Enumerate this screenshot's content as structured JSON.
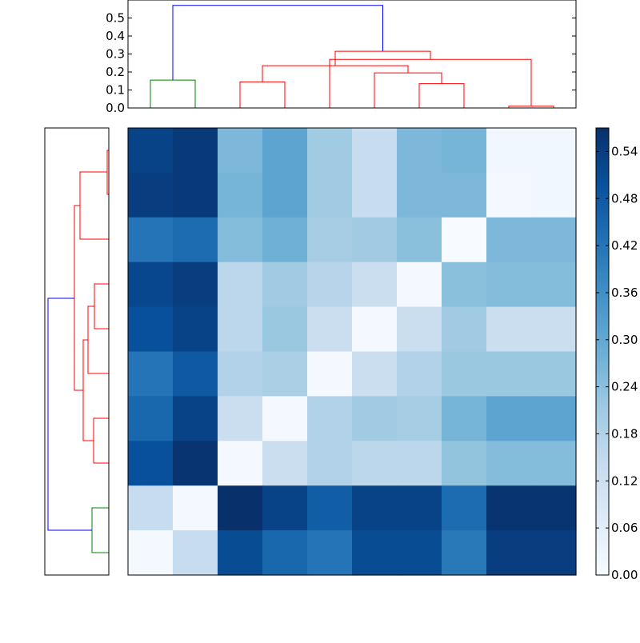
{
  "chart_data": [
    {
      "type": "dendrogram",
      "orientation": "top",
      "ylim": [
        0,
        0.6
      ],
      "yticks": [
        "0.0",
        "0.1",
        "0.2",
        "0.3",
        "0.4",
        "0.5"
      ],
      "colors": {
        "root": "#0000ff",
        "cluster_a": "#008000",
        "cluster_b": "#ff0000"
      },
      "leaf_order": [
        1,
        0,
        8,
        7,
        6,
        5,
        4,
        3,
        2,
        9
      ],
      "merges": [
        {
          "left": 8,
          "right": 9,
          "left_h": 0,
          "right_h": 0,
          "height": 0.01,
          "color": "#ff0000"
        },
        {
          "left": 6,
          "right": 7,
          "left_h": 0,
          "right_h": 0,
          "height": 0.135,
          "color": "#ff0000"
        },
        {
          "left": 0,
          "right": 1,
          "left_h": 0,
          "right_h": 0,
          "height": 0.155,
          "color": "#008000"
        },
        {
          "left": 2,
          "right": 3,
          "left_h": 0,
          "right_h": 0,
          "height": 0.145,
          "color": "#ff0000"
        },
        {
          "left": 5,
          "right": "6-7",
          "left_h": 0,
          "right_h": 0.135,
          "height": 0.195,
          "color": "#ff0000"
        },
        {
          "left": "2-3",
          "right": "5-7",
          "left_h": 0.145,
          "right_h": 0.195,
          "height": 0.235,
          "color": "#ff0000"
        },
        {
          "left": 4,
          "right": "8-9",
          "left_h": 0,
          "right_h": 0.01,
          "height": 0.27,
          "color": "#ff0000"
        },
        {
          "left": "2-7",
          "right": "4-9",
          "left_h": 0.235,
          "right_h": 0.27,
          "height": 0.315,
          "color": "#ff0000"
        },
        {
          "left": "0-1",
          "right": "2-9",
          "left_h": 0.155,
          "right_h": 0.315,
          "height": 0.57,
          "color": "#0000ff"
        }
      ]
    },
    {
      "type": "dendrogram",
      "orientation": "left",
      "colors": {
        "root": "#0000ff",
        "cluster_a": "#008000",
        "cluster_b": "#ff0000"
      },
      "leaf_order": [
        1,
        0,
        8,
        7,
        6,
        5,
        4,
        3,
        2,
        9
      ]
    },
    {
      "type": "heatmap",
      "rows": 10,
      "cols": 10,
      "colormap": "Blues",
      "vmin": 0.0,
      "vmax": 0.57,
      "values": [
        [
          0.53,
          0.55,
          0.26,
          0.31,
          0.21,
          0.14,
          0.26,
          0.27,
          0.02,
          0.02
        ],
        [
          0.54,
          0.55,
          0.27,
          0.31,
          0.21,
          0.14,
          0.26,
          0.26,
          0.01,
          0.02
        ],
        [
          0.42,
          0.44,
          0.25,
          0.28,
          0.2,
          0.21,
          0.24,
          0.0,
          0.26,
          0.26
        ],
        [
          0.52,
          0.54,
          0.16,
          0.21,
          0.17,
          0.13,
          0.01,
          0.24,
          0.25,
          0.25
        ],
        [
          0.5,
          0.53,
          0.16,
          0.22,
          0.13,
          0.01,
          0.13,
          0.21,
          0.13,
          0.13
        ],
        [
          0.42,
          0.48,
          0.18,
          0.19,
          0.01,
          0.13,
          0.18,
          0.22,
          0.22,
          0.22
        ],
        [
          0.45,
          0.53,
          0.13,
          0.01,
          0.18,
          0.21,
          0.2,
          0.27,
          0.31,
          0.31
        ],
        [
          0.5,
          0.56,
          0.01,
          0.13,
          0.18,
          0.16,
          0.16,
          0.23,
          0.25,
          0.25
        ],
        [
          0.14,
          0.01,
          0.57,
          0.53,
          0.47,
          0.53,
          0.53,
          0.44,
          0.56,
          0.56
        ],
        [
          0.01,
          0.14,
          0.51,
          0.45,
          0.42,
          0.51,
          0.51,
          0.41,
          0.54,
          0.54
        ]
      ]
    },
    {
      "type": "colorbar",
      "colormap": "Blues",
      "range": [
        0.0,
        0.57
      ],
      "ticks": [
        "0.00",
        "0.06",
        "0.12",
        "0.18",
        "0.24",
        "0.30",
        "0.36",
        "0.42",
        "0.48",
        "0.54"
      ]
    }
  ]
}
